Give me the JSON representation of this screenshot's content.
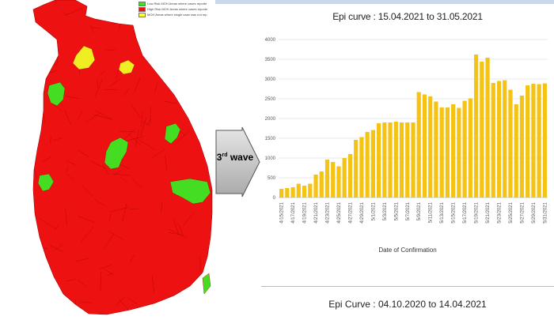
{
  "map": {
    "legend": [
      {
        "label": "Low Risk MOH Areas where cases reporte",
        "color": "#44dd22"
      },
      {
        "label": "High Risk MOH Areas where cases reporte",
        "color": "#ee1111"
      },
      {
        "label": "MOH Areas where single case was not rep",
        "color": "#ffff33"
      }
    ],
    "colors": {
      "high": "#ee1111",
      "low": "#44dd22",
      "single": "#eeee22",
      "border": "#aa0000"
    }
  },
  "wave": {
    "ordinal": "3",
    "suffix": "rd",
    "word": "wave"
  },
  "chart_data": {
    "type": "bar",
    "title": "Epi curve : 15.04.2021 to 31.05.2021",
    "xlabel": "Date of Confirmation",
    "ylabel": "",
    "ylim": [
      0,
      4000
    ],
    "yticks": [
      "0",
      "500",
      "1000",
      "1500",
      "2000",
      "2500",
      "3000",
      "3500",
      "4000"
    ],
    "grid": true,
    "bar_color": "#f5c314",
    "categories": [
      "4/15/2021",
      "4/16/2021",
      "4/17/2021",
      "4/18/2021",
      "4/19/2021",
      "4/20/2021",
      "4/21/2021",
      "4/22/2021",
      "4/23/2021",
      "4/24/2021",
      "4/25/2021",
      "4/26/2021",
      "4/27/2021",
      "4/28/2021",
      "4/29/2021",
      "4/30/2021",
      "5/1/2021",
      "5/2/2021",
      "5/3/2021",
      "5/4/2021",
      "5/5/2021",
      "5/6/2021",
      "5/7/2021",
      "5/8/2021",
      "5/9/2021",
      "5/10/2021",
      "5/11/2021",
      "5/12/2021",
      "5/13/2021",
      "5/14/2021",
      "5/15/2021",
      "5/16/2021",
      "5/17/2021",
      "5/18/2021",
      "5/19/2021",
      "5/20/2021",
      "5/21/2021",
      "5/22/2021",
      "5/23/2021",
      "5/24/2021",
      "5/25/2021",
      "5/26/2021",
      "5/27/2021",
      "5/28/2021",
      "5/29/2021",
      "5/30/2021",
      "5/31/2021"
    ],
    "tick_labels": [
      "4/15/2021",
      "4/17/2021",
      "4/19/2021",
      "4/21/2021",
      "4/23/2021",
      "4/25/2021",
      "4/27/2021",
      "4/29/2021",
      "5/1/2021",
      "5/3/2021",
      "5/5/2021",
      "5/7/2021",
      "5/9/2021",
      "5/11/2021",
      "5/13/2021",
      "5/15/2021",
      "5/17/2021",
      "5/19/2021",
      "5/21/2021",
      "5/23/2021",
      "5/25/2021",
      "5/27/2021",
      "5/29/2021",
      "5/31/2021"
    ],
    "values": [
      220,
      240,
      260,
      350,
      300,
      350,
      580,
      660,
      960,
      900,
      790,
      1000,
      1100,
      1460,
      1530,
      1660,
      1710,
      1880,
      1900,
      1900,
      1920,
      1900,
      1900,
      1900,
      2670,
      2610,
      2560,
      2430,
      2280,
      2280,
      2360,
      2270,
      2450,
      2510,
      3620,
      3440,
      3540,
      2900,
      2950,
      2970,
      2730,
      2360,
      2580,
      2840,
      2880,
      2870,
      2890
    ]
  },
  "bottom_title": "Epi Curve : 04.10.2020 to 14.04.2021"
}
